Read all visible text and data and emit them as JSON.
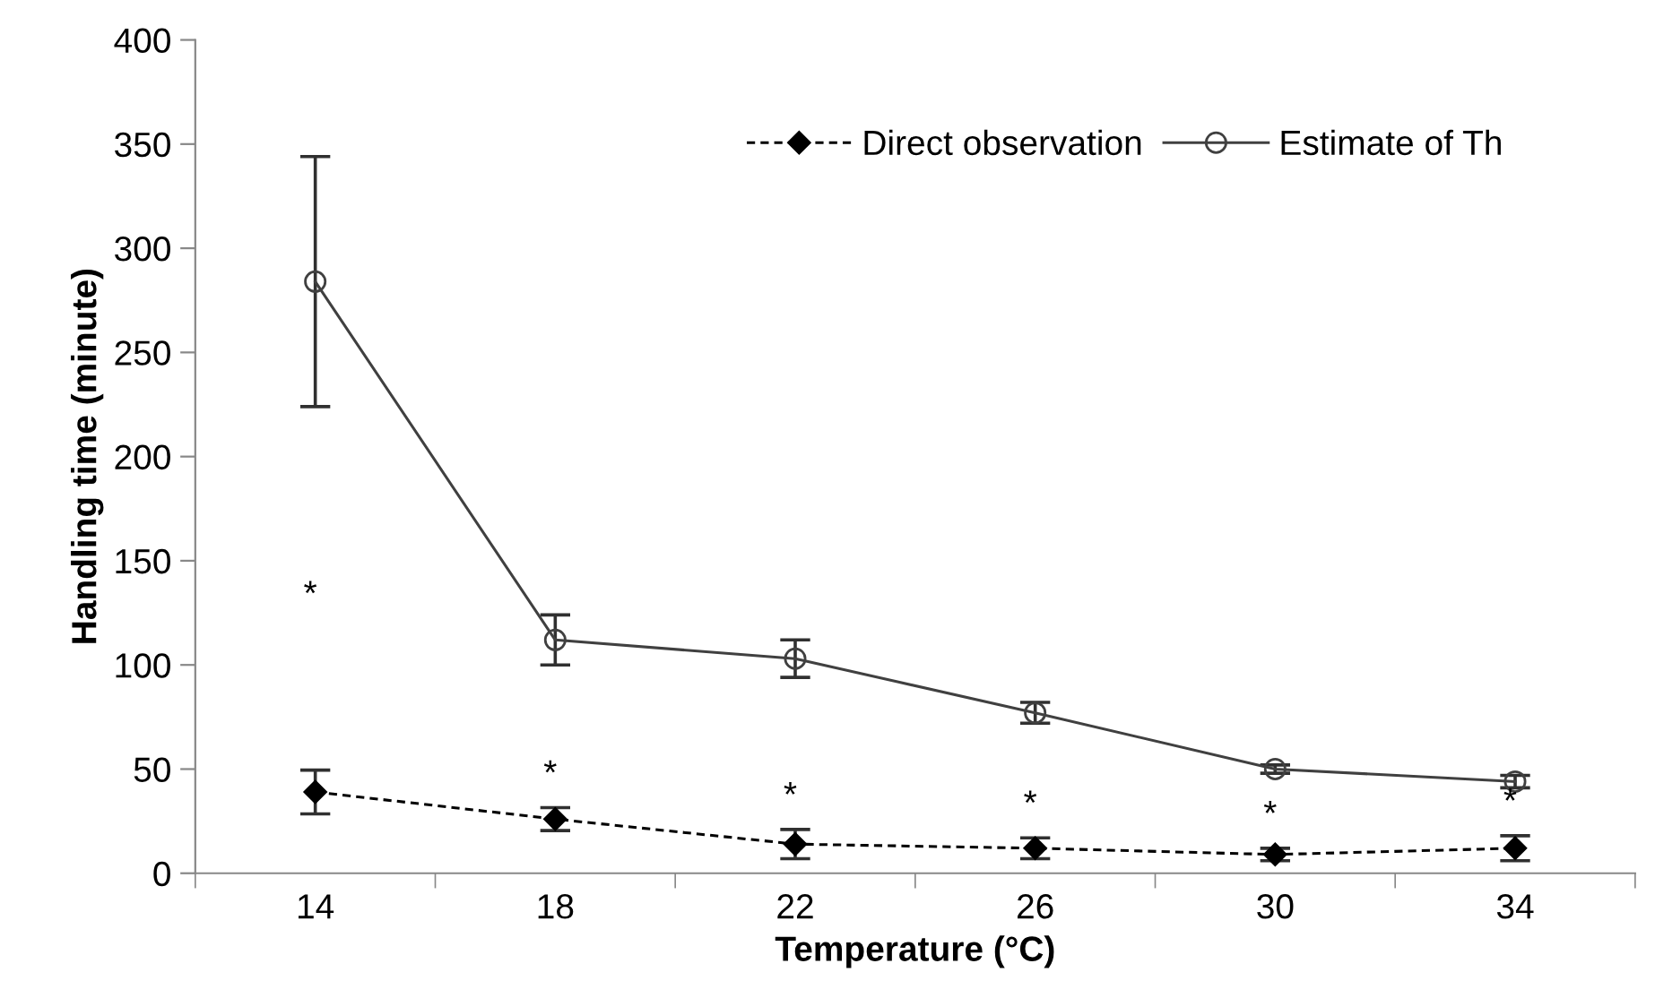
{
  "chart_data": {
    "type": "line",
    "xlabel": "Temperature (°C)",
    "ylabel": "Handling time (minute)",
    "categories": [
      "14",
      "18",
      "22",
      "26",
      "30",
      "34"
    ],
    "series": [
      {
        "name": "Direct observation",
        "color": "#000000",
        "line_style": "dashed",
        "marker": "diamond",
        "values": [
          39,
          26,
          14,
          12,
          9,
          12
        ],
        "errors": [
          10.5,
          5.5,
          7,
          5,
          3,
          6
        ]
      },
      {
        "name": "Estimate of Th",
        "color": "#404040",
        "line_style": "solid",
        "marker": "circle",
        "values": [
          284,
          112,
          103,
          77,
          50,
          44
        ],
        "errors": [
          60,
          12,
          9,
          5,
          2,
          3
        ]
      }
    ],
    "ylim": [
      0,
      400
    ],
    "yticks": [
      0,
      50,
      100,
      150,
      200,
      250,
      300,
      350,
      400
    ],
    "grid": false,
    "legend": "top right",
    "annotations": [
      "*",
      "*",
      "*",
      "*",
      "*",
      "*"
    ]
  }
}
